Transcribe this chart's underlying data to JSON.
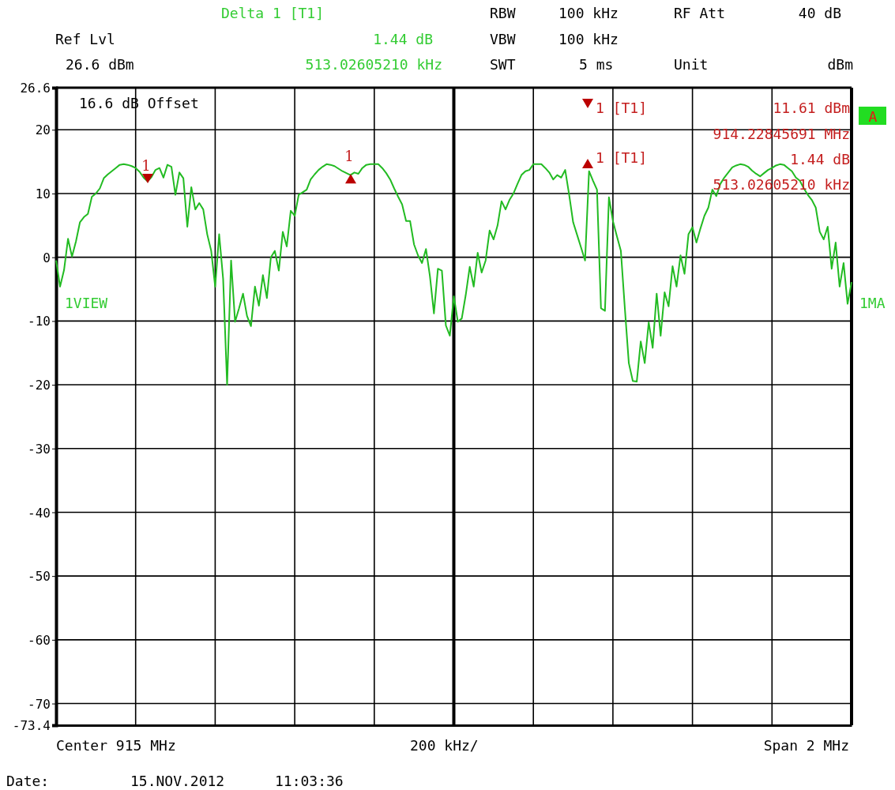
{
  "chart_data": {
    "type": "line",
    "categories": [
      null,
      null,
      null,
      null,
      null,
      null,
      null,
      null,
      null,
      null,
      null,
      null,
      null,
      null,
      null,
      null,
      null,
      null,
      null,
      null,
      null,
      null,
      null,
      null,
      null,
      null,
      null,
      null,
      null,
      null,
      null,
      null,
      null,
      null,
      null,
      null,
      null,
      null,
      null,
      null,
      null,
      null,
      null,
      null,
      null,
      null,
      null,
      null,
      null,
      null,
      null,
      null,
      null,
      null,
      null,
      null,
      null,
      null,
      null,
      null,
      null,
      null,
      null,
      null,
      null,
      null,
      null,
      null,
      null,
      null,
      null,
      null,
      null,
      null,
      null,
      null,
      null,
      null,
      null,
      null,
      null,
      null,
      null,
      null,
      null,
      null,
      null,
      null,
      null,
      null,
      null,
      null,
      null,
      null,
      null,
      null,
      null,
      null,
      null,
      null,
      null,
      null,
      null,
      null,
      null,
      null,
      null,
      null,
      null,
      null,
      null,
      null,
      null,
      null,
      null,
      null,
      null,
      null,
      null,
      null,
      null,
      null,
      null,
      null,
      null,
      null,
      null,
      null,
      null,
      null,
      null,
      null,
      null,
      null,
      null,
      null,
      null,
      null,
      null,
      null,
      null,
      null,
      null,
      null,
      null,
      null,
      null,
      null,
      null,
      null,
      null,
      null,
      null,
      null,
      null,
      null,
      null,
      null,
      null,
      null,
      null,
      null,
      null,
      null,
      null,
      null,
      null,
      null,
      null,
      null,
      null,
      null,
      null,
      null,
      null,
      null,
      null,
      null,
      null,
      null,
      null,
      null,
      null,
      null,
      null,
      null,
      null,
      null,
      null,
      null,
      null,
      null,
      null,
      null,
      null,
      null,
      null,
      null,
      null,
      null,
      null
    ],
    "series": [
      {
        "color": "#22bb22",
        "values": [
          -0.5,
          -4.6,
          -2.0,
          2.9,
          0.1,
          2.5,
          5.5,
          6.3,
          6.8,
          9.5,
          10.0,
          10.8,
          12.4,
          13.0,
          13.5,
          14.0,
          14.5,
          14.6,
          14.5,
          14.3,
          14.0,
          13.4,
          12.5,
          11.9,
          12.6,
          13.7,
          14.0,
          12.5,
          14.5,
          14.2,
          9.8,
          13.3,
          12.4,
          4.8,
          11.0,
          7.5,
          8.5,
          7.5,
          3.6,
          1.0,
          -4.6,
          3.6,
          -3.4,
          -20,
          -0.5,
          -10.1,
          -8.0,
          -5.7,
          -9.2,
          -10.8,
          -4.6,
          -7.6,
          -2.8,
          -6.4,
          0.0,
          1.0,
          -2.1,
          4.0,
          1.7,
          7.3,
          6.5,
          9.8,
          10.2,
          10.6,
          12.2,
          13.0,
          13.7,
          14.2,
          14.6,
          14.5,
          14.3,
          13.9,
          13.5,
          13.2,
          12.9,
          13.3,
          13.1,
          14.0,
          14.5,
          14.6,
          14.6,
          14.6,
          14.0,
          13.2,
          12.2,
          10.8,
          9.5,
          8.3,
          5.7,
          5.7,
          2.0,
          0.3,
          -0.9,
          1.3,
          -3.0,
          -8.8,
          -1.8,
          -2.1,
          -10.7,
          -12.3,
          -6.1,
          -10.1,
          -9.6,
          -5.9,
          -1.5,
          -4.6,
          0.7,
          -2.4,
          -0.5,
          4.2,
          2.8,
          5.0,
          8.8,
          7.5,
          9.0,
          10.0,
          11.5,
          12.9,
          13.5,
          13.7,
          14.6,
          14.6,
          14.6,
          14.0,
          13.3,
          12.2,
          12.9,
          12.5,
          13.7,
          9.8,
          5.5,
          3.5,
          1.5,
          -0.5,
          13.5,
          12.0,
          10.6,
          -8.0,
          -8.4,
          9.4,
          5.7,
          3.3,
          1.0,
          -8.0,
          -16.6,
          -19.4,
          -19.5,
          -13.2,
          -16.6,
          -10.2,
          -14.2,
          -5.7,
          -12.3,
          -5.5,
          -7.7,
          -1.4,
          -4.6,
          0.3,
          -2.6,
          3.6,
          4.7,
          2.3,
          4.5,
          6.5,
          7.8,
          10.6,
          9.6,
          11.5,
          12.5,
          13.3,
          14.1,
          14.4,
          14.6,
          14.5,
          14.2,
          13.6,
          13.1,
          12.7,
          13.2,
          13.7,
          14.0,
          14.4,
          14.6,
          14.5,
          14.0,
          13.5,
          12.5,
          12.0,
          10.8,
          9.8,
          9.0,
          7.8,
          4.0,
          2.8,
          4.8,
          -1.8,
          2.3,
          -4.6,
          -0.9,
          -7.3,
          -3.9
        ]
      }
    ],
    "ylim": [
      -73.4,
      26.6
    ],
    "yticks": [
      -73.4,
      -70,
      -60,
      -50,
      -40,
      -30,
      -20,
      -10,
      0,
      10,
      20,
      26.6
    ],
    "tick_labels": "y",
    "grid": true,
    "marker": "none",
    "line_style": "solid",
    "annotations": [
      "Delta 1 [T1]",
      "Ref Lvl",
      "1.44 dB",
      "26.6 dBm",
      "513.02605210 kHz",
      "RBW",
      "100 kHz",
      "VBW",
      "100 kHz",
      "SWT",
      "5 ms",
      "RF Att",
      "40 dB",
      "Unit",
      "dBm",
      "16.6 dB Offset",
      "1 [T1]",
      "11.61 dBm",
      "914.22845691 MHz",
      "1 [T1]",
      "1.44 dB",
      "513.02605210 kHz",
      "A",
      "1VIEW",
      "1MA",
      "Center 915 MHz",
      "200 kHz/",
      "Span 2 MHz",
      "Date:",
      "15.NOV.2012",
      "11:03:36",
      {
        "text": "1",
        "y": 11.61
      },
      {
        "text": "1",
        "y": 13.05
      }
    ]
  }
}
